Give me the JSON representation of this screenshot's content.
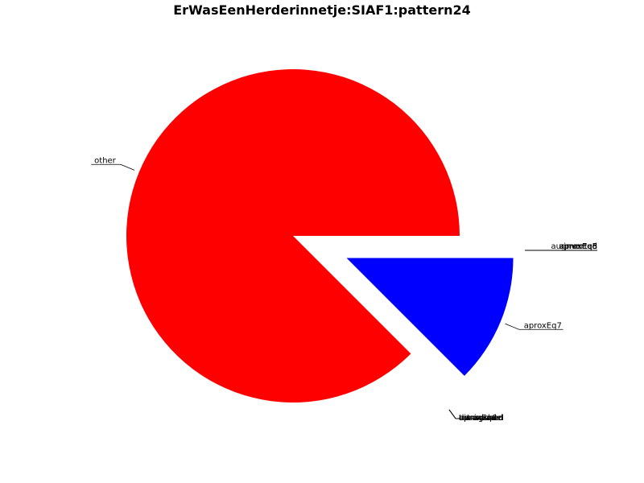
{
  "chart_data": {
    "type": "pie",
    "title": "ErWasEenHerderinnetje:SIAF1:pattern24",
    "slices": [
      {
        "label": "other",
        "value": 87.5,
        "color": "#ff0000",
        "exploded": false
      },
      {
        "label": "aproxEq7",
        "value": 12.5,
        "color": "#0000ff",
        "exploded": true
      },
      {
        "label": "aproxEq5",
        "value": 0,
        "color": "#0000ff",
        "exploded": true
      },
      {
        "label": "aproxEq6",
        "value": 0,
        "color": "#0000ff",
        "exploded": true
      },
      {
        "label": "aproxEq8",
        "value": 0,
        "color": "#0000ff",
        "exploded": true
      },
      {
        "label": "transposed",
        "value": 0,
        "color": "#0000ff",
        "exploded": true
      },
      {
        "label": "augmented",
        "value": 0,
        "color": "#0000ff",
        "exploded": true
      },
      {
        "label": "diminished",
        "value": 0,
        "color": "#0000ff",
        "exploded": true
      },
      {
        "label": "inverted",
        "value": 0,
        "color": "#0000ff",
        "exploded": true
      },
      {
        "label": "retrograde",
        "value": 0,
        "color": "#0000ff",
        "exploded": true
      }
    ],
    "legend": "none"
  }
}
